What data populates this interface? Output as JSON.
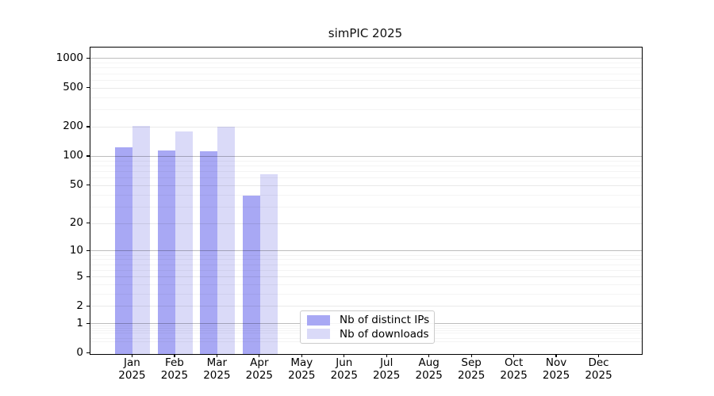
{
  "chart_data": {
    "type": "bar",
    "title": "simPIC 2025",
    "categories": [
      "Jan",
      "Feb",
      "Mar",
      "Apr",
      "May",
      "Jun",
      "Jul",
      "Aug",
      "Sep",
      "Oct",
      "Nov",
      "Dec"
    ],
    "x_tick_year": "2025",
    "series": [
      {
        "name": "Nb of distinct IPs",
        "color": "#a8a8f4",
        "values": [
          125,
          114,
          112,
          39,
          0,
          0,
          0,
          0,
          0,
          0,
          0,
          0
        ]
      },
      {
        "name": "Nb of downloads",
        "color": "#dadaf8",
        "values": [
          205,
          180,
          201,
          65,
          0,
          0,
          0,
          0,
          0,
          0,
          0,
          0
        ]
      }
    ],
    "y_axis": {
      "scale": "log1p",
      "ticks": [
        0,
        1,
        2,
        5,
        10,
        20,
        50,
        100,
        200,
        500,
        1000
      ],
      "minor_ticks": [
        0.3,
        0.4,
        0.6,
        0.7,
        0.8,
        0.9,
        3,
        4,
        6,
        7,
        8,
        9,
        30,
        40,
        60,
        70,
        80,
        90,
        300,
        400,
        600,
        700,
        800,
        900
      ],
      "range_max": 1300
    },
    "xlabel": "",
    "ylabel": "",
    "grid": true,
    "legend_position": "bottom-center"
  },
  "colors": {
    "grid_minor": "#f1f1f1",
    "grid_major": "#e8e8e8",
    "grid_decade": "#bdbdbd",
    "spine": "#000000"
  }
}
